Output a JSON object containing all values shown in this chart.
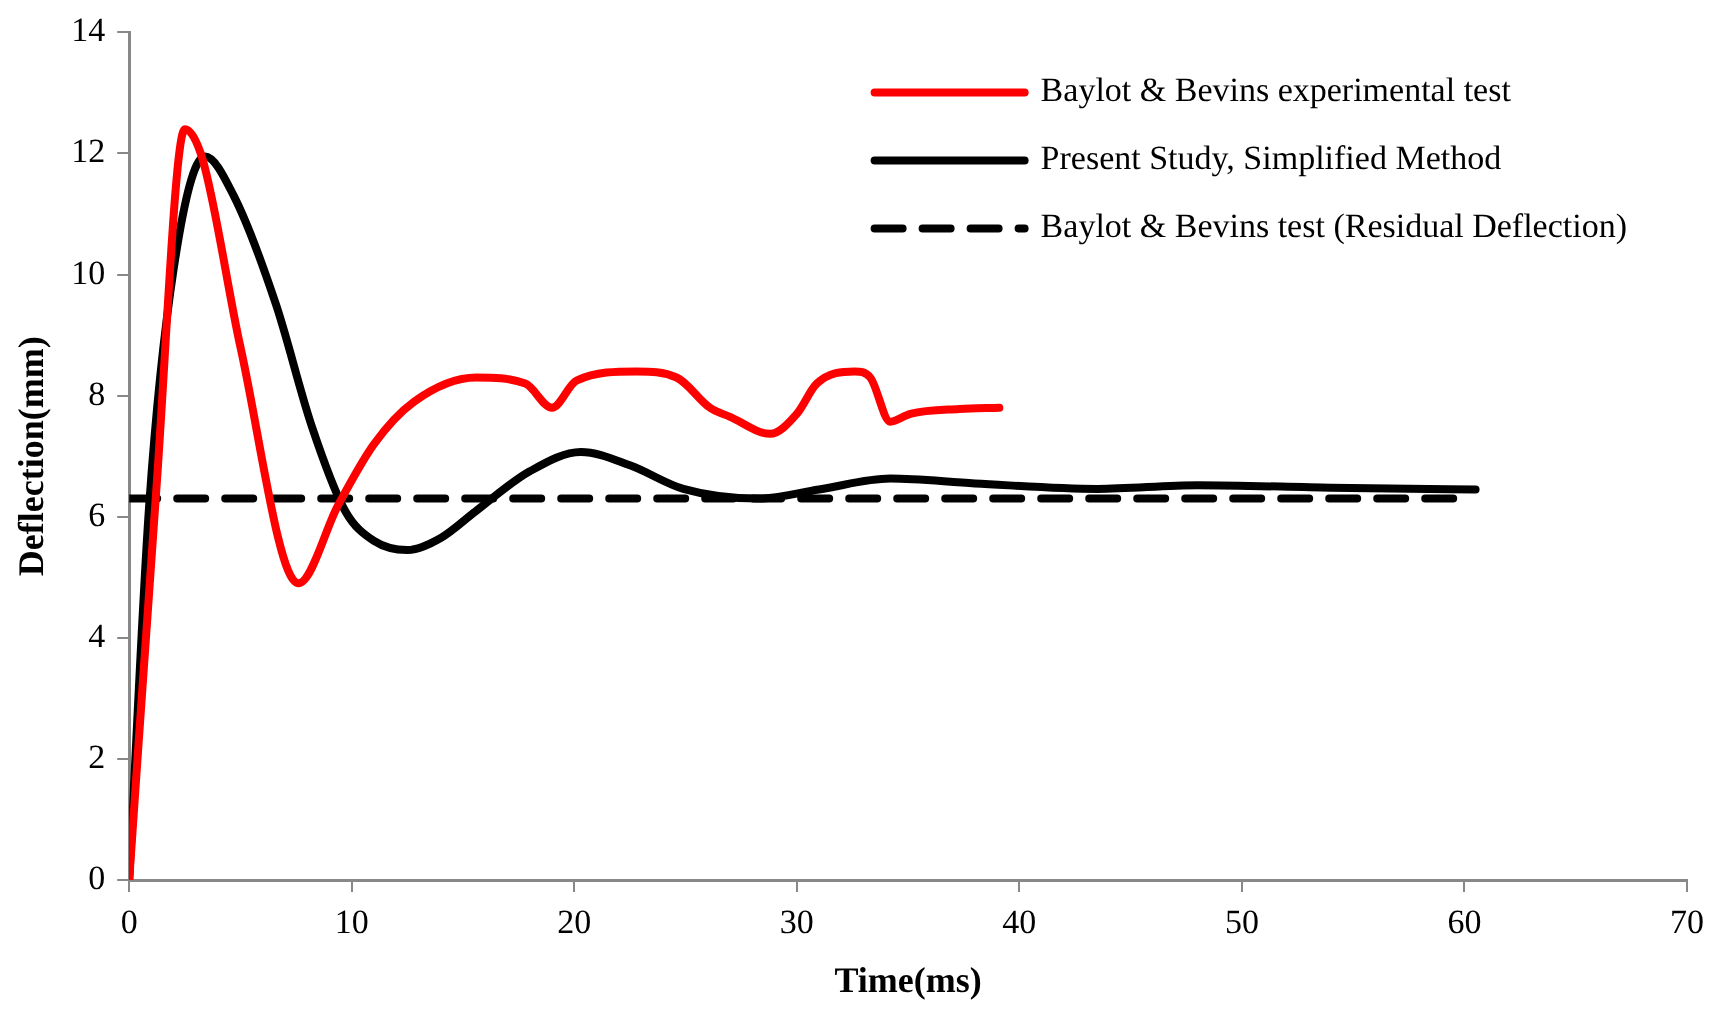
{
  "chart_data": {
    "type": "line",
    "xlabel": "Time(ms)",
    "ylabel": "Deflection(mm)",
    "xlim": [
      0,
      70
    ],
    "xticks": [
      0,
      10,
      20,
      30,
      40,
      50,
      60,
      70
    ],
    "ylim": [
      0,
      14
    ],
    "yticks": [
      0,
      2,
      4,
      6,
      8,
      10,
      12,
      14
    ],
    "grid": false,
    "legend": "top right",
    "marker": "none",
    "series": [
      {
        "name": "Baylot & Bevins experimental test",
        "color": "#ff0000",
        "line_style": "solid",
        "x": [
          0,
          1.2,
          2.5,
          3.3,
          5.0,
          7.6,
          9.4,
          11.0,
          12.8,
          15.6,
          17.8,
          19.0,
          20.1,
          22.8,
          24.6,
          26.1,
          27.0,
          28.8,
          30.0,
          30.9,
          32.6,
          33.3,
          34.2,
          35.1,
          37.3,
          39.1
        ],
        "values": [
          0,
          6.35,
          12.4,
          11.9,
          8.8,
          4.9,
          6.2,
          7.2,
          7.9,
          8.3,
          8.2,
          7.8,
          8.25,
          8.4,
          8.3,
          7.8,
          7.65,
          7.37,
          7.7,
          8.2,
          8.4,
          8.3,
          7.57,
          7.7,
          7.78,
          7.8
        ]
      },
      {
        "name": "Present Study, Simplified Method",
        "color": "#000000",
        "line_style": "solid",
        "x": [
          0,
          0.9,
          2.0,
          3.4,
          4.7,
          6.6,
          8.2,
          9.7,
          11.0,
          12.5,
          14.0,
          15.6,
          18.0,
          20.3,
          22.5,
          24.9,
          28.3,
          31.0,
          34.2,
          38.0,
          43.5,
          48.0,
          54.0,
          60.5
        ],
        "values": [
          0,
          6.2,
          10.1,
          11.95,
          11.3,
          9.5,
          7.5,
          6.1,
          5.6,
          5.45,
          5.65,
          6.1,
          6.75,
          7.07,
          6.85,
          6.46,
          6.3,
          6.45,
          6.63,
          6.55,
          6.46,
          6.52,
          6.48,
          6.45
        ]
      },
      {
        "name": "Baylot & Bevins test (Residual Deflection)",
        "color": "#000000",
        "line_style": "dashed",
        "x": [
          0,
          60.3
        ],
        "values": [
          6.3,
          6.3
        ]
      }
    ]
  }
}
